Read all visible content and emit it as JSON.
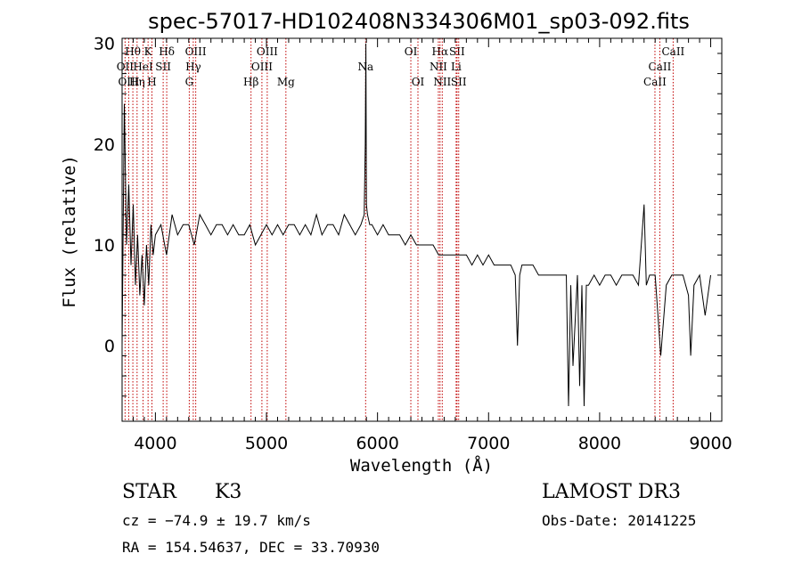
{
  "chart_data": {
    "type": "line",
    "title": "spec-57017-HD102408N334306M01_sp03-092.fits",
    "xlabel": "Wavelength (Å)",
    "ylabel": "Flux (relative)",
    "xlim": [
      3700,
      9100
    ],
    "ylim": [
      -7.5,
      30.5
    ],
    "xticks": [
      4000,
      5000,
      6000,
      7000,
      8000,
      9000
    ],
    "yticks": [
      0,
      10,
      20,
      30
    ],
    "grid": false,
    "legend": "none",
    "series": [
      {
        "color": "#000000",
        "x": [
          3700,
          3720,
          3740,
          3760,
          3780,
          3800,
          3820,
          3840,
          3860,
          3880,
          3900,
          3920,
          3940,
          3960,
          3980,
          4000,
          4050,
          4100,
          4150,
          4200,
          4250,
          4300,
          4350,
          4400,
          4450,
          4500,
          4550,
          4600,
          4650,
          4700,
          4750,
          4800,
          4850,
          4900,
          4950,
          5000,
          5050,
          5100,
          5150,
          5200,
          5250,
          5300,
          5350,
          5400,
          5450,
          5500,
          5550,
          5600,
          5650,
          5700,
          5750,
          5800,
          5850,
          5880,
          5890,
          5895,
          5900,
          5910,
          5930,
          5950,
          6000,
          6050,
          6100,
          6150,
          6200,
          6250,
          6300,
          6350,
          6400,
          6450,
          6500,
          6550,
          6600,
          6650,
          6700,
          6750,
          6800,
          6850,
          6900,
          6950,
          7000,
          7050,
          7100,
          7150,
          7200,
          7240,
          7260,
          7280,
          7300,
          7350,
          7400,
          7450,
          7500,
          7550,
          7600,
          7650,
          7700,
          7720,
          7740,
          7760,
          7800,
          7820,
          7840,
          7860,
          7880,
          7900,
          7950,
          8000,
          8050,
          8100,
          8150,
          8200,
          8250,
          8300,
          8350,
          8400,
          8420,
          8450,
          8500,
          8550,
          8600,
          8650,
          8700,
          8750,
          8800,
          8820,
          8850,
          8900,
          8950,
          9000
        ],
        "y": [
          0,
          24,
          10,
          16,
          8,
          14,
          6,
          11,
          5,
          9,
          4,
          10,
          6,
          12,
          9,
          11,
          12,
          9,
          13,
          11,
          12,
          12,
          10,
          13,
          12,
          11,
          12,
          12,
          11,
          12,
          11,
          11,
          12,
          10,
          11,
          12,
          11,
          12,
          11,
          12,
          12,
          11,
          12,
          11,
          13,
          11,
          12,
          12,
          11,
          13,
          12,
          11,
          12,
          13,
          20,
          30,
          14,
          13,
          12,
          12,
          11,
          12,
          11,
          11,
          11,
          10,
          11,
          10,
          10,
          10,
          10,
          9,
          9,
          9,
          9,
          9,
          9,
          8,
          9,
          8,
          9,
          8,
          8,
          8,
          8,
          7,
          0,
          7,
          8,
          8,
          8,
          7,
          7,
          7,
          7,
          7,
          7,
          -6,
          6,
          -2,
          7,
          -4,
          6,
          -6,
          6,
          6,
          7,
          6,
          7,
          7,
          6,
          7,
          7,
          7,
          6,
          14,
          6,
          7,
          7,
          -1,
          6,
          7,
          7,
          7,
          5,
          -1,
          6,
          7,
          3,
          7
        ]
      }
    ],
    "line_markers": [
      {
        "label": "Hθ",
        "x": 3797,
        "row": 1
      },
      {
        "label": "OII",
        "x": 3727,
        "row": 2
      },
      {
        "label": "OIII",
        "x": 3760,
        "row": 3
      },
      {
        "label": "Hη",
        "x": 3835,
        "row": 3
      },
      {
        "label": "HeI",
        "x": 3889,
        "row": 2
      },
      {
        "label": "K",
        "x": 3934,
        "row": 1
      },
      {
        "label": "H",
        "x": 3969,
        "row": 3
      },
      {
        "label": "SII",
        "x": 4070,
        "row": 2
      },
      {
        "label": "Hδ",
        "x": 4102,
        "row": 1
      },
      {
        "label": "OIII",
        "x": 4363,
        "row": 1
      },
      {
        "label": "Hγ",
        "x": 4341,
        "row": 2
      },
      {
        "label": "G",
        "x": 4305,
        "row": 3
      },
      {
        "label": "Hβ",
        "x": 4861,
        "row": 3
      },
      {
        "label": "OIII",
        "x": 5007,
        "row": 1
      },
      {
        "label": "OIII",
        "x": 4959,
        "row": 2
      },
      {
        "label": "Mg",
        "x": 5175,
        "row": 3
      },
      {
        "label": "Na",
        "x": 5893,
        "row": 2
      },
      {
        "label": "OI",
        "x": 6300,
        "row": 1
      },
      {
        "label": "OI",
        "x": 6364,
        "row": 3
      },
      {
        "label": "Hα",
        "x": 6563,
        "row": 1
      },
      {
        "label": "SII",
        "x": 6716,
        "row": 1
      },
      {
        "label": "NII",
        "x": 6548,
        "row": 2
      },
      {
        "label": "Li",
        "x": 6708,
        "row": 2
      },
      {
        "label": "NII",
        "x": 6583,
        "row": 3
      },
      {
        "label": "SII",
        "x": 6731,
        "row": 3
      },
      {
        "label": "CaII",
        "x": 8662,
        "row": 1
      },
      {
        "label": "CaII",
        "x": 8542,
        "row": 2
      },
      {
        "label": "CaII",
        "x": 8498,
        "row": 3
      }
    ]
  },
  "info": {
    "object_class": "STAR",
    "subclass": "K3",
    "survey": "LAMOST DR3",
    "redshift": "cz = −74.9 ± 19.7 km/s",
    "obs_date": "Obs-Date: 20141225",
    "coords": "RA = 154.54637, DEC =  33.70930"
  }
}
